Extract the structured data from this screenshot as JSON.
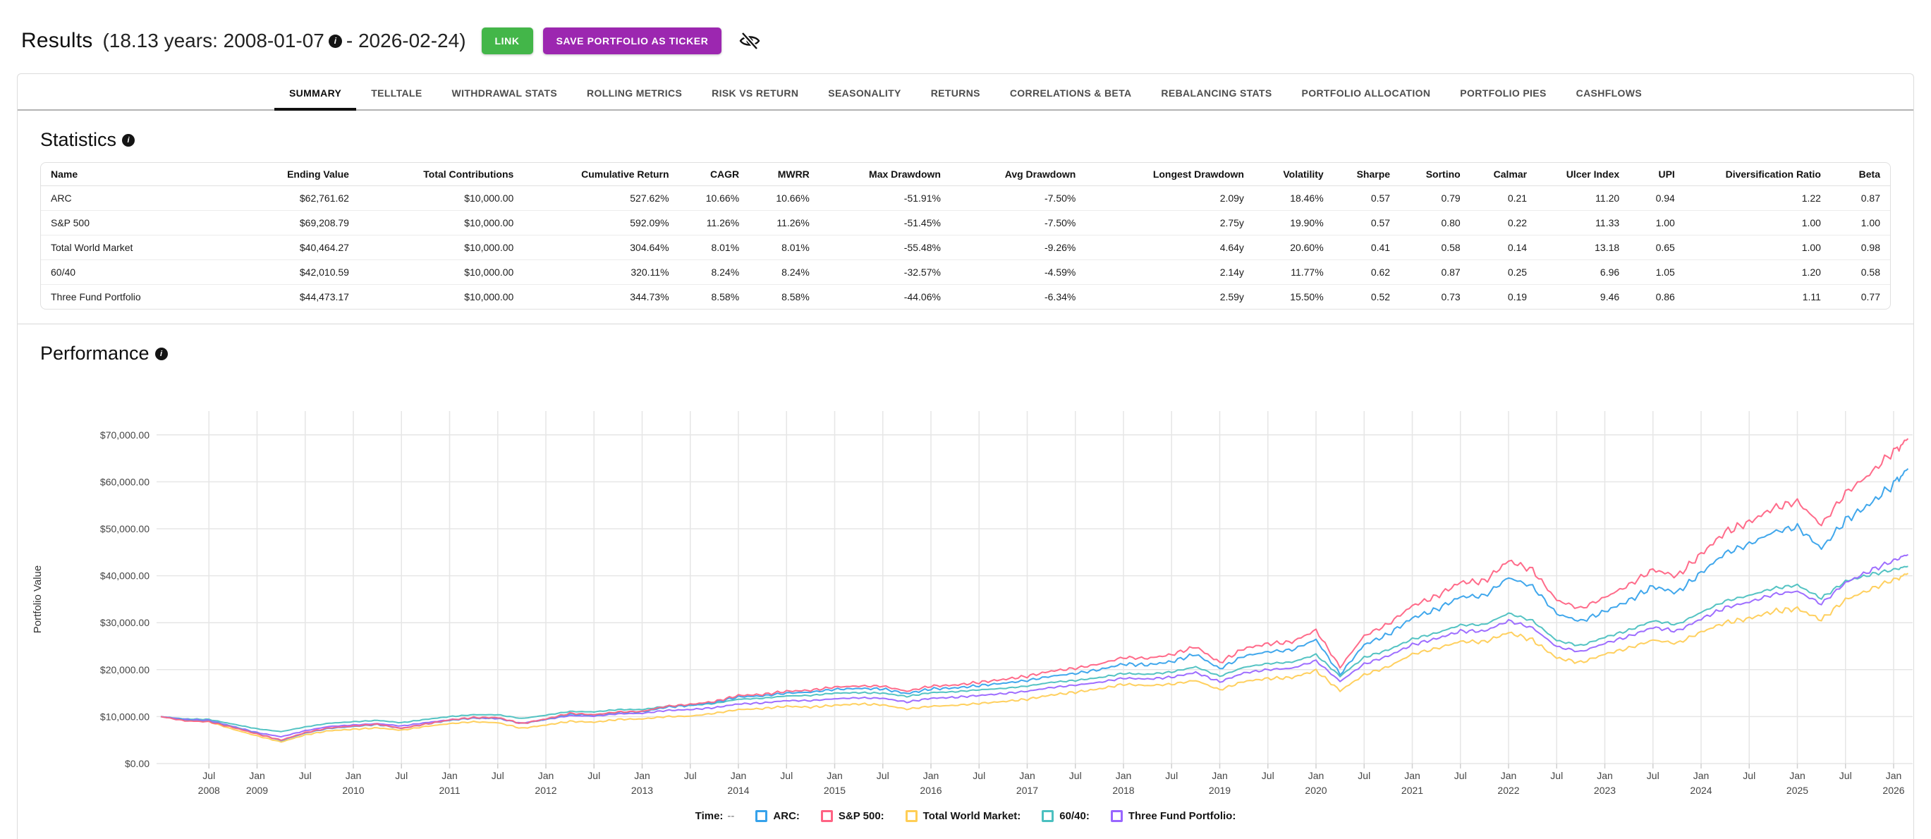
{
  "header": {
    "title": "Results",
    "subtitle_prefix": "(18.13 years: 2008-01-07",
    "subtitle_suffix": "- 2026-02-24)",
    "link_button": "LINK",
    "save_button": "SAVE PORTFOLIO AS TICKER",
    "info_icon_glyph": "i"
  },
  "tabs": {
    "active": "SUMMARY",
    "items": [
      "SUMMARY",
      "TELLTALE",
      "WITHDRAWAL STATS",
      "ROLLING METRICS",
      "RISK VS RETURN",
      "SEASONALITY",
      "RETURNS",
      "CORRELATIONS & BETA",
      "REBALANCING STATS",
      "PORTFOLIO ALLOCATION",
      "PORTFOLIO PIES",
      "CASHFLOWS"
    ]
  },
  "statistics": {
    "heading": "Statistics",
    "columns": [
      "Name",
      "Ending Value",
      "Total Contributions",
      "Cumulative Return",
      "CAGR",
      "MWRR",
      "Max Drawdown",
      "Avg Drawdown",
      "Longest Drawdown",
      "Volatility",
      "Sharpe",
      "Sortino",
      "Calmar",
      "Ulcer Index",
      "UPI",
      "Diversification Ratio",
      "Beta"
    ],
    "rows": [
      [
        "ARC",
        "$62,761.62",
        "$10,000.00",
        "527.62%",
        "10.66%",
        "10.66%",
        "-51.91%",
        "-7.50%",
        "2.09y",
        "18.46%",
        "0.57",
        "0.79",
        "0.21",
        "11.20",
        "0.94",
        "1.22",
        "0.87"
      ],
      [
        "S&P 500",
        "$69,208.79",
        "$10,000.00",
        "592.09%",
        "11.26%",
        "11.26%",
        "-51.45%",
        "-7.50%",
        "2.75y",
        "19.90%",
        "0.57",
        "0.80",
        "0.22",
        "11.33",
        "1.00",
        "1.00",
        "1.00"
      ],
      [
        "Total World Market",
        "$40,464.27",
        "$10,000.00",
        "304.64%",
        "8.01%",
        "8.01%",
        "-55.48%",
        "-9.26%",
        "4.64y",
        "20.60%",
        "0.41",
        "0.58",
        "0.14",
        "13.18",
        "0.65",
        "1.00",
        "0.98"
      ],
      [
        "60/40",
        "$42,010.59",
        "$10,000.00",
        "320.11%",
        "8.24%",
        "8.24%",
        "-32.57%",
        "-4.59%",
        "2.14y",
        "11.77%",
        "0.62",
        "0.87",
        "0.25",
        "6.96",
        "1.05",
        "1.20",
        "0.58"
      ],
      [
        "Three Fund Portfolio",
        "$44,473.17",
        "$10,000.00",
        "344.73%",
        "8.58%",
        "8.58%",
        "-44.06%",
        "-6.34%",
        "2.59y",
        "15.50%",
        "0.52",
        "0.73",
        "0.19",
        "9.46",
        "0.86",
        "1.11",
        "0.77"
      ]
    ]
  },
  "performance": {
    "heading": "Performance"
  },
  "chart_data": {
    "type": "line",
    "title": "Performance",
    "xlabel": "",
    "ylabel": "Portfolio Value",
    "units": "USD thousands",
    "ylim": [
      0,
      74000
    ],
    "grid": true,
    "legend_position": "bottom",
    "legend_time_label": "Time:",
    "legend_time_value": "--",
    "y_ticks": [
      "$0.00",
      "$10,000.00",
      "$20,000.00",
      "$30,000.00",
      "$40,000.00",
      "$50,000.00",
      "$60,000.00",
      "$70,000.00"
    ],
    "x_ticks": [
      [
        "Jul",
        "2008"
      ],
      [
        "Jan",
        "2009"
      ],
      [
        "Jul",
        ""
      ],
      [
        "Jan",
        "2010"
      ],
      [
        "Jul",
        ""
      ],
      [
        "Jan",
        "2011"
      ],
      [
        "Jul",
        ""
      ],
      [
        "Jan",
        "2012"
      ],
      [
        "Jul",
        ""
      ],
      [
        "Jan",
        "2013"
      ],
      [
        "Jul",
        ""
      ],
      [
        "Jan",
        "2014"
      ],
      [
        "Jul",
        ""
      ],
      [
        "Jan",
        "2015"
      ],
      [
        "Jul",
        ""
      ],
      [
        "Jan",
        "2016"
      ],
      [
        "Jul",
        ""
      ],
      [
        "Jan",
        "2017"
      ],
      [
        "Jul",
        ""
      ],
      [
        "Jan",
        "2018"
      ],
      [
        "Jul",
        ""
      ],
      [
        "Jan",
        "2019"
      ],
      [
        "Jul",
        ""
      ],
      [
        "Jan",
        "2020"
      ],
      [
        "Jul",
        ""
      ],
      [
        "Jan",
        "2021"
      ],
      [
        "Jul",
        ""
      ],
      [
        "Jan",
        "2022"
      ],
      [
        "Jul",
        ""
      ],
      [
        "Jan",
        "2023"
      ],
      [
        "Jul",
        ""
      ],
      [
        "Jan",
        "2024"
      ],
      [
        "Jul",
        ""
      ],
      [
        "Jan",
        "2025"
      ],
      [
        "Jul",
        ""
      ],
      [
        "Jan",
        "2026"
      ]
    ],
    "x_years": [
      2008,
      2008.25,
      2008.5,
      2008.75,
      2009,
      2009.25,
      2009.5,
      2009.75,
      2010,
      2010.25,
      2010.5,
      2010.75,
      2011,
      2011.25,
      2011.5,
      2011.75,
      2012,
      2012.25,
      2012.5,
      2012.75,
      2013,
      2013.25,
      2013.5,
      2013.75,
      2014,
      2014.25,
      2014.5,
      2014.75,
      2015,
      2015.25,
      2015.5,
      2015.75,
      2016,
      2016.25,
      2016.5,
      2016.75,
      2017,
      2017.25,
      2017.5,
      2017.75,
      2018,
      2018.25,
      2018.5,
      2018.75,
      2019,
      2019.25,
      2019.5,
      2019.75,
      2020,
      2020.25,
      2020.5,
      2020.75,
      2021,
      2021.25,
      2021.5,
      2021.75,
      2022,
      2022.25,
      2022.5,
      2022.75,
      2023,
      2023.25,
      2023.5,
      2023.75,
      2024,
      2024.25,
      2024.5,
      2024.75,
      2025,
      2025.25,
      2025.5,
      2025.75,
      2026,
      2026.15
    ],
    "series": [
      {
        "name": "ARC",
        "color": "#36A2EB",
        "values_k_usd": [
          10.0,
          9.2,
          9.0,
          7.8,
          6.4,
          4.9,
          6.5,
          7.5,
          7.9,
          8.3,
          7.5,
          8.4,
          9.2,
          9.7,
          9.7,
          8.5,
          9.4,
          10.5,
          10.3,
          10.9,
          11.0,
          12.0,
          12.4,
          13.0,
          14.2,
          14.4,
          15.0,
          15.2,
          15.8,
          16.0,
          15.9,
          14.9,
          15.9,
          16.1,
          16.6,
          17.1,
          17.7,
          18.6,
          19.2,
          20.0,
          21.2,
          21.0,
          21.7,
          23.3,
          20.2,
          22.9,
          23.8,
          24.2,
          26.4,
          19.0,
          25.3,
          27.5,
          31.0,
          32.8,
          35.5,
          35.7,
          39.6,
          37.7,
          31.9,
          30.3,
          32.4,
          34.7,
          37.7,
          36.4,
          40.6,
          44.8,
          46.7,
          49.3,
          50.4,
          45.8,
          51.8,
          55.2,
          59.5,
          62.8
        ]
      },
      {
        "name": "S&P 500",
        "color": "#FF6384",
        "values_k_usd": [
          10.0,
          9.1,
          8.9,
          7.7,
          6.3,
          5.0,
          6.6,
          7.6,
          8.0,
          8.4,
          7.5,
          8.4,
          9.3,
          9.8,
          9.8,
          8.5,
          9.5,
          10.7,
          10.4,
          11.0,
          11.1,
          12.2,
          12.6,
          13.2,
          14.5,
          14.7,
          15.4,
          15.6,
          16.3,
          16.5,
          16.5,
          15.4,
          16.5,
          16.7,
          17.3,
          17.9,
          18.6,
          19.7,
          20.3,
          21.2,
          22.6,
          22.4,
          23.2,
          24.9,
          21.5,
          24.5,
          25.5,
          25.9,
          28.4,
          20.5,
          27.2,
          29.7,
          33.6,
          35.6,
          38.6,
          38.8,
          43.2,
          41.2,
          34.8,
          33.0,
          35.4,
          38.0,
          41.3,
          39.9,
          44.6,
          49.3,
          51.4,
          54.4,
          55.8,
          50.8,
          57.6,
          61.6,
          66.6,
          69.2
        ]
      },
      {
        "name": "Total World Market",
        "color": "#FFCE56",
        "values_k_usd": [
          10.0,
          9.2,
          8.9,
          7.3,
          5.9,
          4.6,
          6.1,
          7.0,
          7.3,
          7.6,
          7.1,
          7.9,
          8.5,
          8.9,
          8.7,
          7.5,
          8.2,
          9.0,
          8.8,
          9.4,
          9.5,
          10.0,
          10.1,
          10.7,
          11.5,
          11.7,
          12.2,
          12.0,
          12.4,
          12.7,
          12.5,
          11.6,
          12.2,
          12.4,
          12.8,
          13.2,
          13.7,
          14.6,
          15.2,
          15.9,
          16.9,
          16.6,
          16.9,
          17.7,
          15.7,
          17.5,
          18.1,
          18.3,
          19.8,
          15.5,
          18.9,
          20.6,
          23.3,
          24.5,
          26.0,
          25.9,
          27.9,
          26.3,
          22.5,
          21.5,
          23.3,
          24.6,
          26.3,
          25.6,
          28.0,
          30.0,
          30.9,
          32.4,
          33.0,
          30.6,
          34.9,
          37.0,
          39.2,
          40.5
        ]
      },
      {
        "name": "60/40",
        "color": "#4BC0C0",
        "values_k_usd": [
          10.0,
          9.5,
          9.4,
          8.4,
          7.4,
          6.8,
          7.8,
          8.6,
          8.9,
          9.2,
          8.7,
          9.4,
          10.0,
          10.4,
          10.4,
          9.6,
          10.3,
          11.1,
          11.0,
          11.5,
          11.5,
          12.2,
          12.4,
          12.8,
          13.7,
          13.9,
          14.4,
          14.5,
          15.0,
          15.1,
          15.0,
          14.3,
          15.1,
          15.3,
          15.7,
          16.0,
          16.5,
          17.3,
          17.7,
          18.3,
          19.2,
          19.0,
          19.5,
          20.6,
          18.6,
          20.5,
          21.3,
          21.6,
          23.2,
          18.6,
          22.6,
          24.2,
          26.5,
          27.8,
          29.5,
          29.6,
          32.0,
          30.4,
          26.2,
          25.1,
          26.9,
          28.4,
          30.4,
          29.6,
          32.2,
          34.6,
          35.8,
          37.3,
          38.0,
          35.2,
          38.8,
          40.2,
          41.3,
          42.0
        ]
      },
      {
        "name": "Three Fund Portfolio",
        "color": "#9966FF",
        "values_k_usd": [
          10.0,
          9.4,
          9.2,
          7.9,
          6.6,
          5.7,
          7.0,
          7.9,
          8.2,
          8.5,
          8.0,
          8.7,
          9.3,
          9.7,
          9.6,
          8.6,
          9.4,
          10.2,
          10.1,
          10.6,
          10.7,
          11.3,
          11.5,
          11.9,
          12.7,
          12.9,
          13.4,
          13.4,
          13.8,
          14.0,
          13.9,
          13.1,
          13.9,
          14.1,
          14.5,
          14.9,
          15.4,
          16.2,
          16.7,
          17.3,
          18.2,
          18.0,
          18.4,
          19.4,
          17.4,
          19.3,
          20.0,
          20.3,
          21.9,
          17.5,
          21.2,
          22.9,
          25.3,
          26.6,
          28.2,
          28.2,
          30.4,
          28.9,
          24.9,
          23.8,
          25.6,
          27.1,
          29.0,
          28.2,
          30.8,
          33.2,
          34.4,
          36.0,
          36.7,
          34.0,
          38.5,
          41.0,
          43.2,
          44.5
        ]
      }
    ]
  }
}
